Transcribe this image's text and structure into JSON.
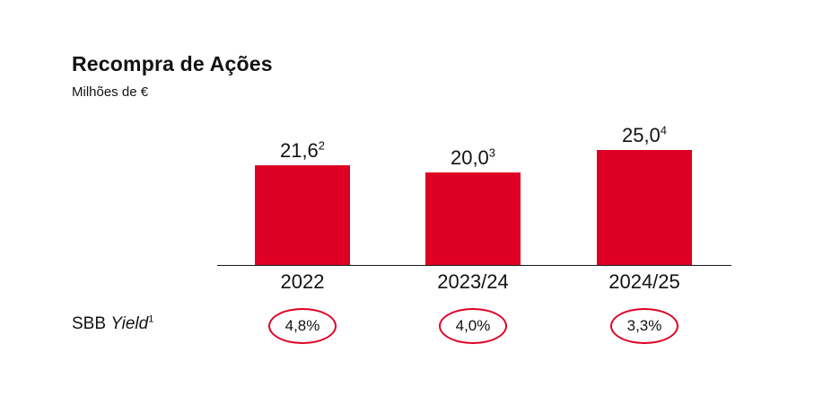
{
  "chart_data": {
    "type": "bar",
    "title": "Recompra de Ações",
    "subtitle": "Milhões de €",
    "categories": [
      "2022",
      "2023/24",
      "2024/25"
    ],
    "values": [
      21.6,
      20.0,
      25.0
    ],
    "value_labels": [
      "21,6",
      "20,0",
      "25,0"
    ],
    "value_footnotes": [
      "2",
      "3",
      "4"
    ],
    "bar_color": "#DE0024",
    "axis_color": "#1a1a1a",
    "ylim": [
      0,
      30
    ],
    "grid": false,
    "legend": "none",
    "secondary_row": {
      "label_prefix": "SBB ",
      "label_italic": "Yield",
      "label_footnote": "1",
      "values": [
        "4,8%",
        "4,0%",
        "3,3%"
      ],
      "circle_color": "#DE0024"
    }
  }
}
